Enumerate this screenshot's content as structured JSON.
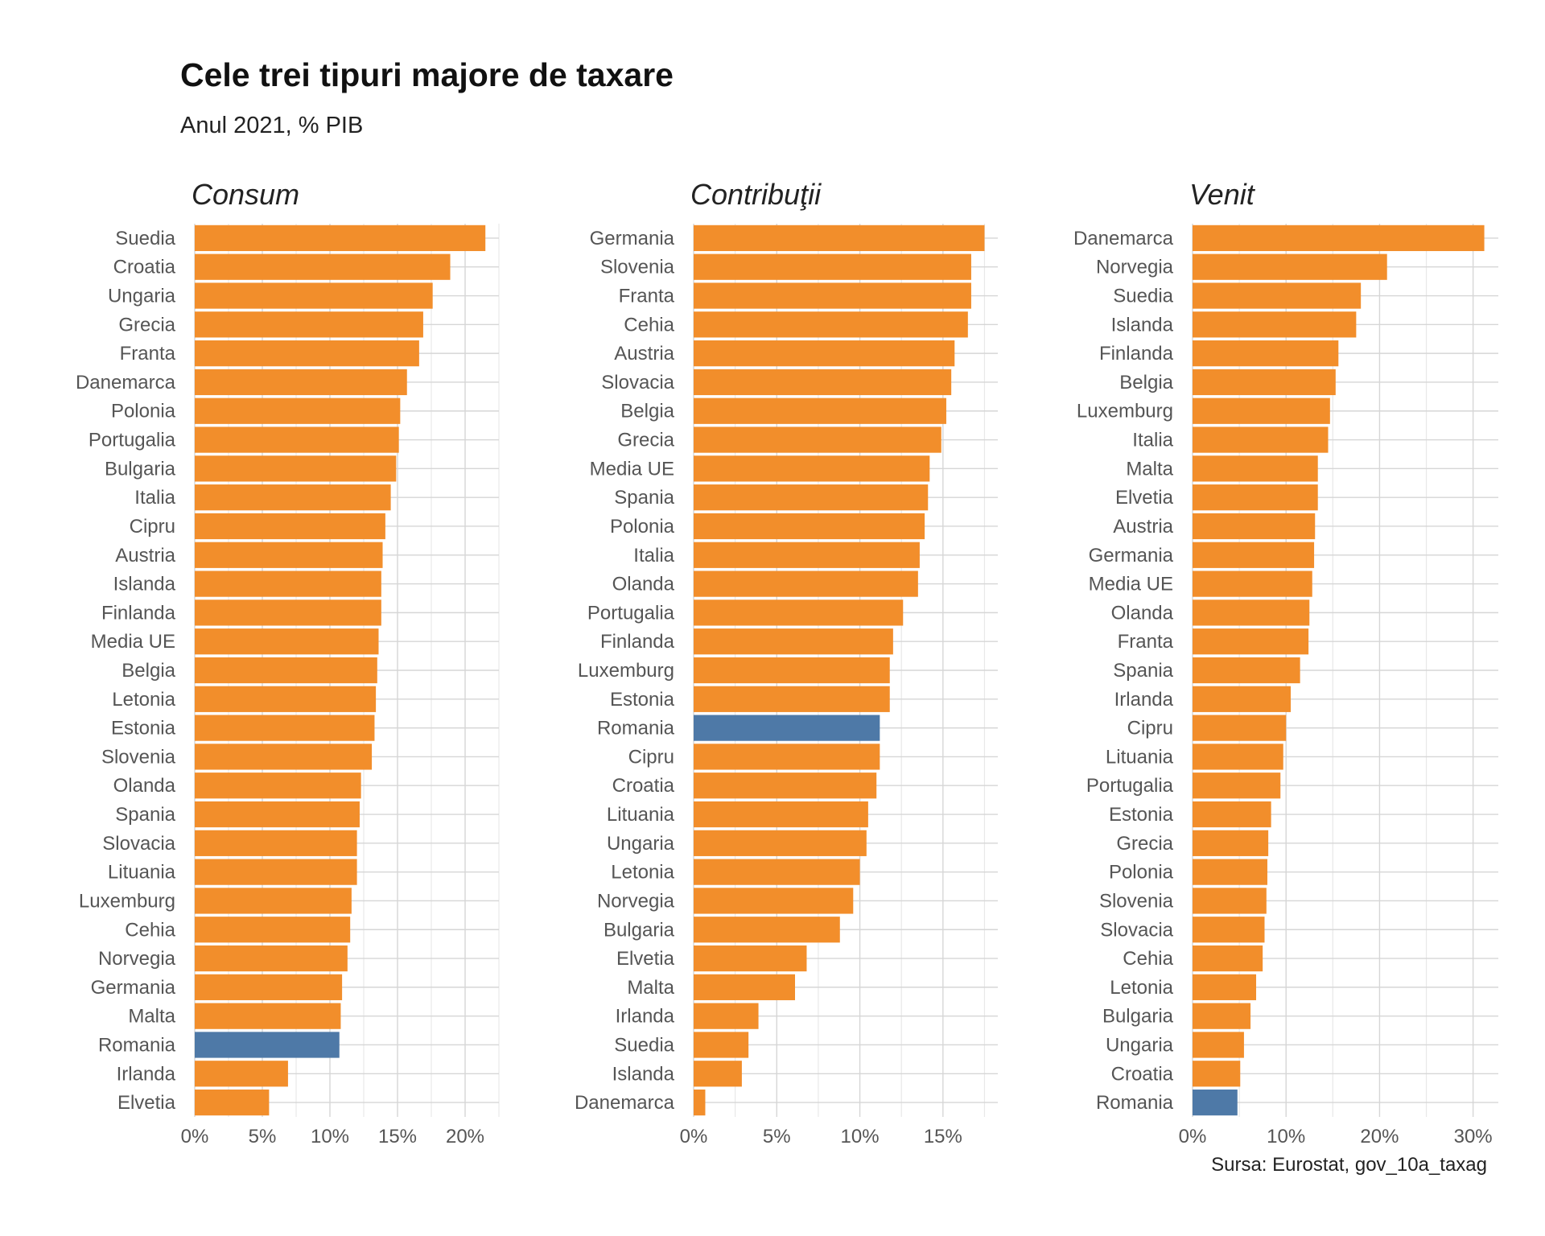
{
  "title": "Cele trei tipuri majore de taxare",
  "subtitle": "Anul 2021, % PIB",
  "source": "Sursa: Eurostat, gov_10a_taxag",
  "colors": {
    "default": "#F28E2B",
    "highlight": "#4E79A7"
  },
  "highlight_category": "Romania",
  "chart_data": [
    {
      "type": "bar",
      "orientation": "horizontal",
      "title": "Consum",
      "xlim": [
        0,
        22.5
      ],
      "ticks": [
        0,
        5,
        10,
        15,
        20
      ],
      "tick_labels": [
        "0%",
        "5%",
        "10%",
        "15%",
        "20%"
      ],
      "categories": [
        "Suedia",
        "Croatia",
        "Ungaria",
        "Grecia",
        "Franta",
        "Danemarca",
        "Polonia",
        "Portugalia",
        "Bulgaria",
        "Italia",
        "Cipru",
        "Austria",
        "Islanda",
        "Finlanda",
        "Media UE",
        "Belgia",
        "Letonia",
        "Estonia",
        "Slovenia",
        "Olanda",
        "Spania",
        "Slovacia",
        "Lituania",
        "Luxemburg",
        "Cehia",
        "Norvegia",
        "Germania",
        "Malta",
        "Romania",
        "Irlanda",
        "Elvetia"
      ],
      "values": [
        21.5,
        18.9,
        17.6,
        16.9,
        16.6,
        15.7,
        15.2,
        15.1,
        14.9,
        14.5,
        14.1,
        13.9,
        13.8,
        13.8,
        13.6,
        13.5,
        13.4,
        13.3,
        13.1,
        12.3,
        12.2,
        12.0,
        12.0,
        11.6,
        11.5,
        11.3,
        10.9,
        10.8,
        10.7,
        6.9,
        5.5
      ]
    },
    {
      "type": "bar",
      "orientation": "horizontal",
      "title": "Contribuţii",
      "xlim": [
        0,
        18.3
      ],
      "ticks": [
        0,
        5,
        10,
        15
      ],
      "tick_labels": [
        "0%",
        "5%",
        "10%",
        "15%"
      ],
      "categories": [
        "Germania",
        "Slovenia",
        "Franta",
        "Cehia",
        "Austria",
        "Slovacia",
        "Belgia",
        "Grecia",
        "Media UE",
        "Spania",
        "Polonia",
        "Italia",
        "Olanda",
        "Portugalia",
        "Finlanda",
        "Luxemburg",
        "Estonia",
        "Romania",
        "Cipru",
        "Croatia",
        "Lituania",
        "Ungaria",
        "Letonia",
        "Norvegia",
        "Bulgaria",
        "Elvetia",
        "Malta",
        "Irlanda",
        "Suedia",
        "Islanda",
        "Danemarca"
      ],
      "values": [
        17.5,
        16.7,
        16.7,
        16.5,
        15.7,
        15.5,
        15.2,
        14.9,
        14.2,
        14.1,
        13.9,
        13.6,
        13.5,
        12.6,
        12.0,
        11.8,
        11.8,
        11.2,
        11.2,
        11.0,
        10.5,
        10.4,
        10.0,
        9.6,
        8.8,
        6.8,
        6.1,
        3.9,
        3.3,
        2.9,
        0.7
      ]
    },
    {
      "type": "bar",
      "orientation": "horizontal",
      "title": "Venit",
      "xlim": [
        0,
        32.7
      ],
      "ticks": [
        0,
        10,
        20,
        30
      ],
      "tick_labels": [
        "0%",
        "10%",
        "20%",
        "30%"
      ],
      "categories": [
        "Danemarca",
        "Norvegia",
        "Suedia",
        "Islanda",
        "Finlanda",
        "Belgia",
        "Luxemburg",
        "Italia",
        "Malta",
        "Elvetia",
        "Austria",
        "Germania",
        "Media UE",
        "Olanda",
        "Franta",
        "Spania",
        "Irlanda",
        "Cipru",
        "Lituania",
        "Portugalia",
        "Estonia",
        "Grecia",
        "Polonia",
        "Slovenia",
        "Slovacia",
        "Cehia",
        "Letonia",
        "Bulgaria",
        "Ungaria",
        "Croatia",
        "Romania"
      ],
      "values": [
        31.2,
        20.8,
        18.0,
        17.5,
        15.6,
        15.3,
        14.7,
        14.5,
        13.4,
        13.4,
        13.1,
        13.0,
        12.8,
        12.5,
        12.4,
        11.5,
        10.5,
        10.0,
        9.7,
        9.4,
        8.4,
        8.1,
        8.0,
        7.9,
        7.7,
        7.5,
        6.8,
        6.2,
        5.5,
        5.1,
        4.8
      ]
    }
  ]
}
